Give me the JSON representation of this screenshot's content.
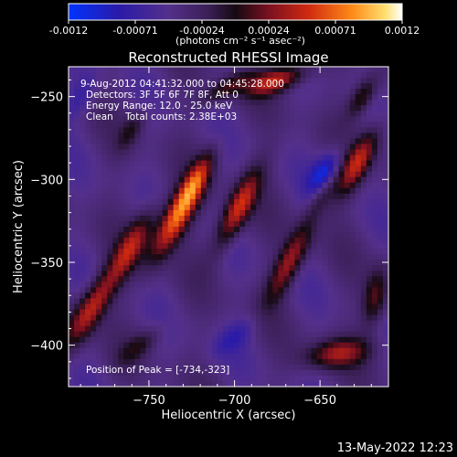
{
  "chart_data": {
    "type": "heatmap",
    "title": "Reconstructed RHESSI Image",
    "xlabel": "Heliocentric X (arcsec)",
    "ylabel": "Heliocentric Y (arcsec)",
    "xlim": [
      -797,
      -610
    ],
    "ylim": [
      -425,
      -232
    ],
    "x_ticks": [
      -750,
      -700,
      -650
    ],
    "y_ticks": [
      -250,
      -300,
      -350,
      -400
    ],
    "colorbar": {
      "ticks": [
        "-0.0012",
        "-0.00071",
        "-0.00024",
        "0.00024",
        "0.00071",
        "0.0012"
      ],
      "range": [
        -0.0012,
        0.0012
      ],
      "unit_label": "(photons cm⁻² s⁻¹ asec⁻²)"
    },
    "annotations": {
      "time_range": "9-Aug-2012 04:41:32.000 to 04:45:28.000",
      "detectors": "Detectors: 3F 5F 6F 7F 8F, Att 0",
      "energy": "Energy Range: 12.0 - 25.0 keV",
      "method": "Clean    Total counts: 2.38E+03",
      "peak": "Position of Peak = [-734,-323]"
    },
    "peak": {
      "x": -734,
      "y": -323
    },
    "blobs": [
      {
        "x": -734,
        "y": -323,
        "amp": 0.00118,
        "len": 42,
        "wid": 11,
        "angle": 62
      },
      {
        "x": -698,
        "y": -318,
        "amp": 0.00095,
        "len": 40,
        "wid": 10,
        "angle": 64
      },
      {
        "x": -722,
        "y": -300,
        "amp": 0.0006,
        "len": 30,
        "wid": 8,
        "angle": 62
      },
      {
        "x": -760,
        "y": -340,
        "amp": 0.00075,
        "len": 38,
        "wid": 10,
        "angle": 62
      },
      {
        "x": -784,
        "y": -378,
        "amp": 0.0009,
        "len": 40,
        "wid": 11,
        "angle": 60
      },
      {
        "x": -668,
        "y": -350,
        "amp": 0.0008,
        "len": 40,
        "wid": 10,
        "angle": 64
      },
      {
        "x": -648,
        "y": -308,
        "amp": 0.0004,
        "len": 25,
        "wid": 8,
        "angle": 62
      },
      {
        "x": -628,
        "y": -290,
        "amp": 0.00085,
        "len": 35,
        "wid": 10,
        "angle": 62
      },
      {
        "x": -675,
        "y": -240,
        "amp": 0.0009,
        "len": 28,
        "wid": 10,
        "angle": 20
      },
      {
        "x": -705,
        "y": -245,
        "amp": 0.0005,
        "len": 25,
        "wid": 8,
        "angle": 30
      },
      {
        "x": -640,
        "y": -405,
        "amp": 0.0007,
        "len": 30,
        "wid": 12,
        "angle": 10
      },
      {
        "x": -618,
        "y": -372,
        "amp": 0.0006,
        "len": 28,
        "wid": 10,
        "angle": 80
      },
      {
        "x": -625,
        "y": -250,
        "amp": 0.0006,
        "len": 22,
        "wid": 9,
        "angle": 60
      },
      {
        "x": -760,
        "y": -270,
        "amp": 0.00035,
        "len": 22,
        "wid": 8,
        "angle": 60
      },
      {
        "x": -755,
        "y": -400,
        "amp": 0.00035,
        "len": 25,
        "wid": 9,
        "angle": 40
      },
      {
        "x": -647,
        "y": -296,
        "amp": -0.0007,
        "len": 22,
        "wid": 10,
        "angle": 60
      },
      {
        "x": -790,
        "y": -250,
        "amp": -0.0003,
        "len": 25,
        "wid": 10,
        "angle": 60
      },
      {
        "x": -700,
        "y": -395,
        "amp": -0.0003,
        "len": 25,
        "wid": 10,
        "angle": 40
      }
    ]
  },
  "footer": {
    "timestamp": "13-May-2022 12:23"
  }
}
